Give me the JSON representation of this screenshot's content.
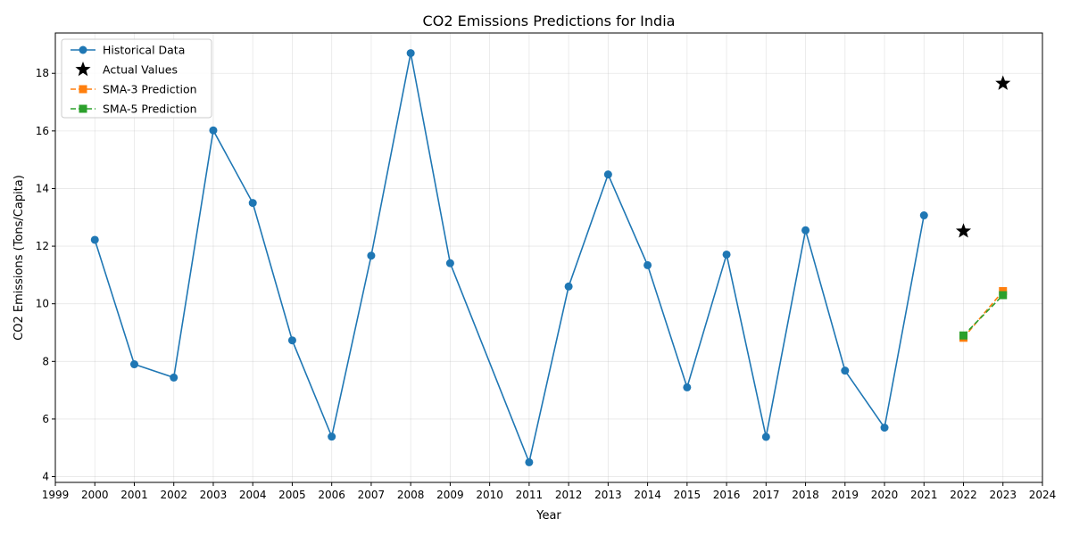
{
  "chart_data": {
    "type": "line",
    "title": "CO2 Emissions Predictions for India",
    "xlabel": "Year",
    "ylabel": "CO2 Emissions (Tons/Capita)",
    "xlim": [
      1999,
      2024
    ],
    "ylim": [
      3.8,
      19.4
    ],
    "x_ticks": [
      1999,
      2000,
      2001,
      2002,
      2003,
      2004,
      2005,
      2006,
      2007,
      2008,
      2009,
      2010,
      2011,
      2012,
      2013,
      2014,
      2015,
      2016,
      2017,
      2018,
      2019,
      2020,
      2021,
      2022,
      2023,
      2024
    ],
    "y_ticks": [
      4,
      6,
      8,
      10,
      12,
      14,
      16,
      18
    ],
    "grid": true,
    "legend_position": "top-left",
    "series": [
      {
        "name": "Historical Data",
        "color": "#1f77b4",
        "marker": "circle",
        "line": "solid",
        "x": [
          2000,
          2001,
          2002,
          2003,
          2004,
          2005,
          2006,
          2007,
          2008,
          2009,
          2011,
          2012,
          2013,
          2014,
          2015,
          2016,
          2017,
          2018,
          2019,
          2020,
          2021
        ],
        "y": [
          12.22,
          7.9,
          7.44,
          16.02,
          13.5,
          8.73,
          5.39,
          11.67,
          18.7,
          11.41,
          4.5,
          10.6,
          14.49,
          11.34,
          7.1,
          11.71,
          5.38,
          12.55,
          7.68,
          5.7,
          13.07
        ]
      },
      {
        "name": "Actual Values",
        "color": "#000000",
        "marker": "star",
        "line": "none",
        "x": [
          2022,
          2023
        ],
        "y": [
          12.52,
          17.65
        ]
      },
      {
        "name": "SMA-3 Prediction",
        "color": "#ff7f0e",
        "marker": "square",
        "line": "dashed",
        "x": [
          2022,
          2023
        ],
        "y": [
          8.82,
          10.44
        ]
      },
      {
        "name": "SMA-5 Prediction",
        "color": "#2ca02c",
        "marker": "square",
        "line": "dashed",
        "x": [
          2022,
          2023
        ],
        "y": [
          8.9,
          10.3
        ]
      }
    ]
  }
}
